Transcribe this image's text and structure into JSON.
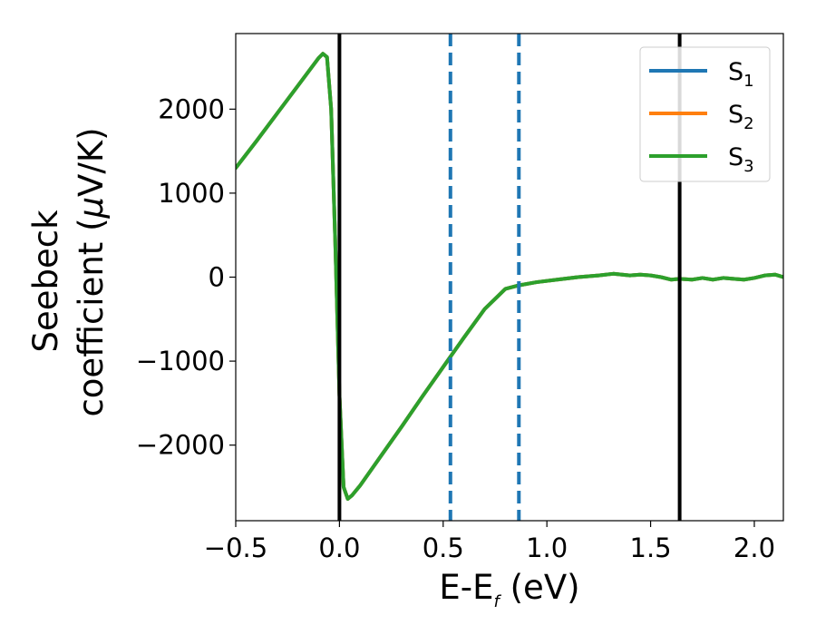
{
  "chart_data": {
    "type": "line",
    "xlabel": {
      "main": "E-E",
      "sub": "f",
      "rest": " (eV)"
    },
    "ylabel": {
      "line1": "Seebeck",
      "line2_main": "coefficient  (",
      "line2_mu": "μ",
      "line2_rest": "V/K)"
    },
    "xlim": [
      -0.5,
      2.14
    ],
    "ylim": [
      -2900,
      2900
    ],
    "xticks": [
      -0.5,
      0.0,
      0.5,
      1.0,
      1.5,
      2.0
    ],
    "xtick_labels": [
      "−0.5",
      "0.0",
      "0.5",
      "1.0",
      "1.5",
      "2.0"
    ],
    "yticks": [
      -2000,
      -1000,
      0,
      1000,
      2000
    ],
    "ytick_labels": [
      "−2000",
      "−1000",
      "0",
      "1000",
      "2000"
    ],
    "grid": false,
    "legend_position": "top-right",
    "vlines": [
      {
        "x": 0.0,
        "style": "solid",
        "color": "#000000"
      },
      {
        "x": 1.64,
        "style": "solid",
        "color": "#000000"
      },
      {
        "x": 0.535,
        "style": "dashed",
        "color": "#1f77b4"
      },
      {
        "x": 0.865,
        "style": "dashed",
        "color": "#1f77b4"
      }
    ],
    "x": [
      -0.5,
      -0.4,
      -0.3,
      -0.2,
      -0.1,
      -0.08,
      -0.06,
      -0.04,
      -0.02,
      0.0,
      0.02,
      0.04,
      0.06,
      0.1,
      0.2,
      0.3,
      0.4,
      0.5,
      0.6,
      0.7,
      0.8,
      0.86,
      0.95,
      1.05,
      1.15,
      1.25,
      1.32,
      1.4,
      1.45,
      1.5,
      1.55,
      1.6,
      1.64,
      1.7,
      1.75,
      1.8,
      1.85,
      1.9,
      1.95,
      2.0,
      2.05,
      2.1,
      2.14
    ],
    "series": [
      {
        "name_main": "S",
        "name_sub": "1",
        "color": "#1f77b4",
        "values": [
          1300,
          1620,
          1950,
          2280,
          2610,
          2660,
          2620,
          2000,
          400,
          -1400,
          -2500,
          -2640,
          -2600,
          -2480,
          -2130,
          -1780,
          -1420,
          -1070,
          -720,
          -380,
          -140,
          -100,
          -60,
          -30,
          0,
          20,
          40,
          20,
          30,
          20,
          0,
          -30,
          -20,
          -30,
          -10,
          -30,
          -10,
          -20,
          -30,
          -10,
          20,
          30,
          0
        ]
      },
      {
        "name_main": "S",
        "name_sub": "2",
        "color": "#ff7f0e",
        "values": [
          1300,
          1620,
          1950,
          2280,
          2610,
          2660,
          2620,
          2000,
          400,
          -1400,
          -2500,
          -2640,
          -2600,
          -2480,
          -2130,
          -1780,
          -1420,
          -1070,
          -720,
          -380,
          -140,
          -100,
          -60,
          -30,
          0,
          20,
          40,
          20,
          30,
          20,
          0,
          -30,
          -20,
          -30,
          -10,
          -30,
          -10,
          -20,
          -30,
          -10,
          20,
          30,
          0
        ]
      },
      {
        "name_main": "S",
        "name_sub": "3",
        "color": "#2ca02c",
        "values": [
          1300,
          1620,
          1950,
          2280,
          2610,
          2660,
          2620,
          2000,
          400,
          -1400,
          -2500,
          -2640,
          -2600,
          -2480,
          -2130,
          -1780,
          -1420,
          -1070,
          -720,
          -380,
          -140,
          -100,
          -60,
          -30,
          0,
          20,
          40,
          20,
          30,
          20,
          0,
          -30,
          -20,
          -30,
          -10,
          -30,
          -10,
          -20,
          -30,
          -10,
          20,
          30,
          0
        ]
      }
    ]
  }
}
